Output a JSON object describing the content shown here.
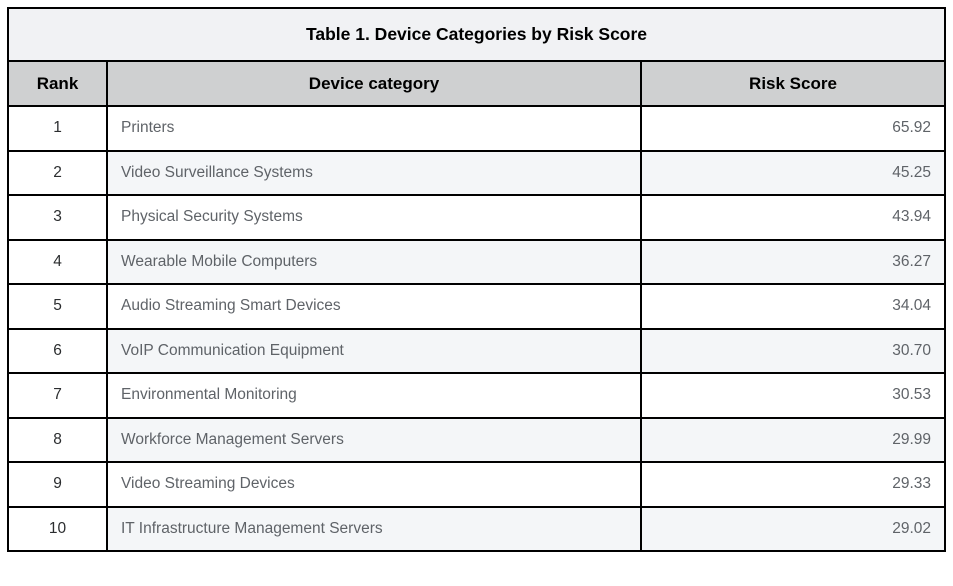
{
  "table": {
    "title": "Table 1. Device Categories by Risk Score",
    "columns": [
      "Rank",
      "Device category",
      "Risk Score"
    ],
    "rows": [
      {
        "rank": "1",
        "category": "Printers",
        "score": "65.92"
      },
      {
        "rank": "2",
        "category": "Video Surveillance Systems",
        "score": "45.25"
      },
      {
        "rank": "3",
        "category": "Physical Security Systems",
        "score": "43.94"
      },
      {
        "rank": "4",
        "category": "Wearable Mobile Computers",
        "score": "36.27"
      },
      {
        "rank": "5",
        "category": "Audio Streaming Smart Devices",
        "score": "34.04"
      },
      {
        "rank": "6",
        "category": "VoIP Communication Equipment",
        "score": "30.70"
      },
      {
        "rank": "7",
        "category": "Environmental Monitoring",
        "score": "30.53"
      },
      {
        "rank": "8",
        "category": "Workforce Management Servers",
        "score": "29.99"
      },
      {
        "rank": "9",
        "category": "Video Streaming Devices",
        "score": "29.33"
      },
      {
        "rank": "10",
        "category": "IT Infrastructure Management Servers",
        "score": "29.02"
      }
    ]
  },
  "colors": {
    "border": "#000000",
    "title_bg": "#f1f2f4",
    "header_bg": "#cfd0d1",
    "alt_row_bg": "#f4f6f8",
    "body_text": "#5f6368",
    "rank_text": "#2b2d2f"
  }
}
